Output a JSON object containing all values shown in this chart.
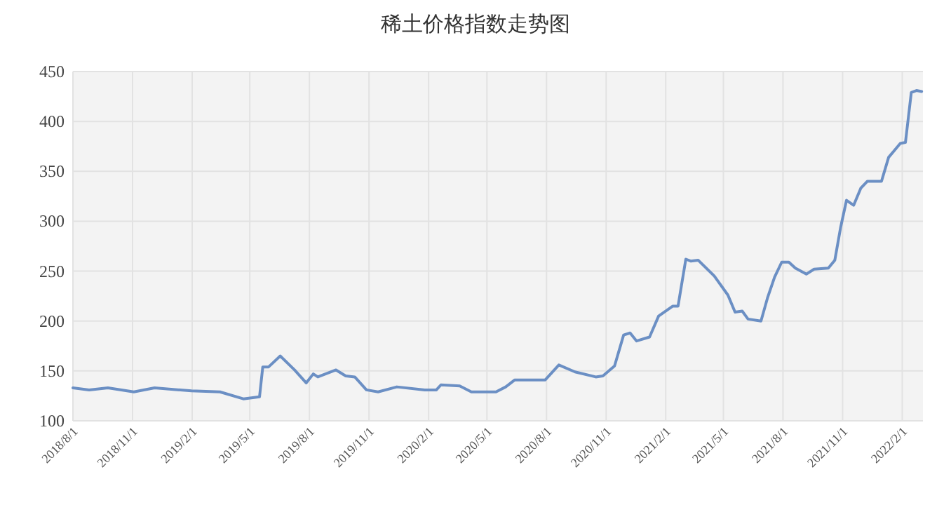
{
  "chart_data": {
    "type": "line",
    "title": "稀土价格指数走势图",
    "xlim": [
      "2018-08-01",
      "2022-03-05"
    ],
    "xticks": [
      {
        "value": "2018-08-01",
        "label": "2018/8/1"
      },
      {
        "value": "2018-11-01",
        "label": "2018/11/1"
      },
      {
        "value": "2019-02-01",
        "label": "2019/2/1"
      },
      {
        "value": "2019-05-01",
        "label": "2019/5/1"
      },
      {
        "value": "2019-08-01",
        "label": "2019/8/1"
      },
      {
        "value": "2019-11-01",
        "label": "2019/11/1"
      },
      {
        "value": "2020-02-01",
        "label": "2020/2/1"
      },
      {
        "value": "2020-05-01",
        "label": "2020/5/1"
      },
      {
        "value": "2020-08-01",
        "label": "2020/8/1"
      },
      {
        "value": "2020-11-01",
        "label": "2020/11/1"
      },
      {
        "value": "2021-02-01",
        "label": "2021/2/1"
      },
      {
        "value": "2021-05-01",
        "label": "2021/5/1"
      },
      {
        "value": "2021-08-01",
        "label": "2021/8/1"
      },
      {
        "value": "2021-11-01",
        "label": "2021/11/1"
      },
      {
        "value": "2022-02-01",
        "label": "2022/2/1"
      }
    ],
    "ylim": [
      100,
      450
    ],
    "yticks": [
      100,
      150,
      200,
      250,
      300,
      350,
      400,
      450
    ],
    "grid": true,
    "marker": "none",
    "line_style": "solid",
    "series": [
      {
        "color": "#6b8fc4",
        "x": [
          "2018-08-01",
          "2018-08-26",
          "2018-09-24",
          "2018-11-03",
          "2018-12-05",
          "2019-01-31",
          "2019-03-16",
          "2019-04-21",
          "2019-05-16",
          "2019-05-21",
          "2019-05-30",
          "2019-06-17",
          "2019-07-09",
          "2019-07-27",
          "2019-08-07",
          "2019-08-14",
          "2019-09-11",
          "2019-09-26",
          "2019-10-10",
          "2019-10-28",
          "2019-11-15",
          "2019-12-14",
          "2020-01-26",
          "2020-02-13",
          "2020-02-20",
          "2020-03-20",
          "2020-04-07",
          "2020-05-01",
          "2020-05-15",
          "2020-05-30",
          "2020-06-13",
          "2020-07-30",
          "2020-08-20",
          "2020-09-14",
          "2020-10-16",
          "2020-10-27",
          "2020-11-14",
          "2020-11-28",
          "2020-12-08",
          "2020-12-18",
          "2021-01-07",
          "2021-01-21",
          "2021-02-12",
          "2021-02-20",
          "2021-03-04",
          "2021-03-12",
          "2021-03-23",
          "2021-04-17",
          "2021-05-08",
          "2021-05-19",
          "2021-05-30",
          "2021-06-08",
          "2021-06-28",
          "2021-07-08",
          "2021-07-19",
          "2021-07-30",
          "2021-08-10",
          "2021-08-20",
          "2021-09-06",
          "2021-09-18",
          "2021-10-10",
          "2021-10-20",
          "2021-10-29",
          "2021-11-07",
          "2021-11-18",
          "2021-11-29",
          "2021-12-09",
          "2021-12-31",
          "2022-01-11",
          "2022-01-29",
          "2022-02-06",
          "2022-02-15",
          "2022-02-23",
          "2022-03-03"
        ],
        "values": [
          133,
          131,
          133,
          129,
          133,
          130,
          129,
          122,
          124,
          154,
          154,
          165,
          151,
          138,
          147,
          144,
          151,
          145,
          144,
          131,
          129,
          134,
          131,
          131,
          136,
          135,
          129,
          129,
          129,
          134,
          141,
          141,
          156,
          149,
          144,
          145,
          155,
          186,
          188,
          180,
          184,
          205,
          215,
          215,
          262,
          260,
          261,
          245,
          226,
          209,
          210,
          202,
          200,
          223,
          244,
          259,
          259,
          253,
          247,
          252,
          253,
          261,
          294,
          321,
          316,
          333,
          340,
          340,
          364,
          378,
          379,
          429,
          431,
          430
        ]
      }
    ]
  }
}
